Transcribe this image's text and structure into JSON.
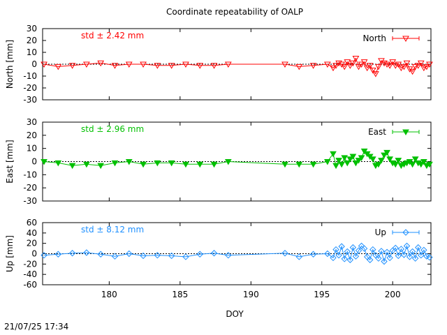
{
  "chart_data": {
    "type": "scatter",
    "title": "Coordinate repeatability of OALP",
    "xlabel": "DOY",
    "xlim": [
      175.3,
      202.7
    ],
    "xticks": [
      180,
      185,
      190,
      195,
      200
    ],
    "grid": false,
    "timestamp": "21/07/25 17:34",
    "panels": [
      {
        "name": "North",
        "ylabel": "North [mm]",
        "ylim": [
          -30,
          30
        ],
        "yticks": [
          30,
          20,
          10,
          0,
          -10,
          -20,
          -30
        ],
        "color": "#ff0000",
        "marker": "triangle-down-open",
        "legend": "North",
        "legend_position": "top-right",
        "std_label": "std ± 2.42 mm",
        "x": [
          175.4,
          176.4,
          177.4,
          178.4,
          179.4,
          180.4,
          181.4,
          182.4,
          183.4,
          184.4,
          185.4,
          186.4,
          187.4,
          188.4,
          192.4,
          193.4,
          194.4,
          195.4,
          195.8,
          196.0,
          196.2,
          196.4,
          196.6,
          196.8,
          197.0,
          197.2,
          197.4,
          197.6,
          197.8,
          198.0,
          198.2,
          198.4,
          198.6,
          198.8,
          199.0,
          199.2,
          199.4,
          199.6,
          199.8,
          200.0,
          200.2,
          200.4,
          200.6,
          200.8,
          201.0,
          201.2,
          201.4,
          201.6,
          201.8,
          202.0,
          202.2,
          202.4,
          202.6
        ],
        "values": [
          0,
          -2,
          -1,
          0,
          1,
          -1,
          0,
          0,
          -1,
          -1,
          0,
          -1,
          -1,
          0,
          0,
          -2,
          -1,
          0,
          -3,
          -1,
          1,
          0,
          -2,
          2,
          -1,
          1,
          5,
          -2,
          0,
          2,
          -3,
          -1,
          -5,
          -8,
          -2,
          3,
          1,
          0,
          -1,
          2,
          -1,
          0,
          -3,
          -2,
          1,
          -4,
          -6,
          -2,
          -1,
          1,
          -3,
          -2,
          0
        ]
      },
      {
        "name": "East",
        "ylabel": "East [mm]",
        "ylim": [
          -30,
          30
        ],
        "yticks": [
          30,
          20,
          10,
          0,
          -10,
          -20,
          -30
        ],
        "color": "#00c000",
        "marker": "triangle-down-filled",
        "legend": "East",
        "legend_position": "top-right",
        "std_label": "std ± 2.96 mm",
        "x": [
          175.4,
          176.4,
          177.4,
          178.4,
          179.4,
          180.4,
          181.4,
          182.4,
          183.4,
          184.4,
          185.4,
          186.4,
          187.4,
          188.4,
          192.4,
          193.4,
          194.4,
          195.4,
          195.8,
          196.0,
          196.2,
          196.4,
          196.6,
          196.8,
          197.0,
          197.2,
          197.4,
          197.6,
          197.8,
          198.0,
          198.2,
          198.4,
          198.6,
          198.8,
          199.0,
          199.2,
          199.4,
          199.6,
          199.8,
          200.0,
          200.2,
          200.4,
          200.6,
          200.8,
          201.0,
          201.2,
          201.4,
          201.6,
          201.8,
          202.0,
          202.2,
          202.4,
          202.6
        ],
        "values": [
          0,
          -1,
          -3,
          -2,
          -3,
          -1,
          0,
          -2,
          -1,
          -1,
          -2,
          -2,
          -2,
          0,
          -2,
          -2,
          -2,
          0,
          6,
          -3,
          1,
          -2,
          3,
          -1,
          2,
          4,
          -1,
          1,
          3,
          8,
          6,
          4,
          2,
          -3,
          -2,
          1,
          5,
          7,
          2,
          -1,
          -2,
          1,
          -3,
          -2,
          -1,
          0,
          -2,
          2,
          -1,
          -2,
          0,
          -3,
          -2
        ]
      },
      {
        "name": "Up",
        "ylabel": "Up [mm]",
        "ylim": [
          -60,
          60
        ],
        "yticks": [
          60,
          40,
          20,
          0,
          -20,
          -40,
          -60
        ],
        "color": "#1e90ff",
        "marker": "diamond-open",
        "legend": "Up",
        "legend_position": "top-right",
        "std_label": "std ± 8.12 mm",
        "x": [
          175.4,
          176.4,
          177.4,
          178.4,
          179.4,
          180.4,
          181.4,
          182.4,
          183.4,
          184.4,
          185.4,
          186.4,
          187.4,
          188.4,
          192.4,
          193.4,
          194.4,
          195.4,
          195.8,
          196.0,
          196.2,
          196.4,
          196.6,
          196.8,
          197.0,
          197.2,
          197.4,
          197.6,
          197.8,
          198.0,
          198.2,
          198.4,
          198.6,
          198.8,
          199.0,
          199.2,
          199.4,
          199.6,
          199.8,
          200.0,
          200.2,
          200.4,
          200.6,
          200.8,
          201.0,
          201.2,
          201.4,
          201.6,
          201.8,
          202.0,
          202.2,
          202.4,
          202.6
        ],
        "values": [
          -3,
          -1,
          1,
          2,
          -1,
          -5,
          0,
          -4,
          -3,
          -4,
          -6,
          -1,
          1,
          -3,
          1,
          -6,
          -1,
          0,
          -8,
          8,
          -3,
          14,
          -10,
          4,
          -12,
          12,
          -5,
          6,
          15,
          10,
          -6,
          -12,
          8,
          -3,
          -9,
          5,
          -15,
          3,
          -8,
          6,
          11,
          -4,
          9,
          -2,
          15,
          -6,
          4,
          -9,
          12,
          -3,
          7,
          -5,
          -7
        ]
      }
    ]
  }
}
